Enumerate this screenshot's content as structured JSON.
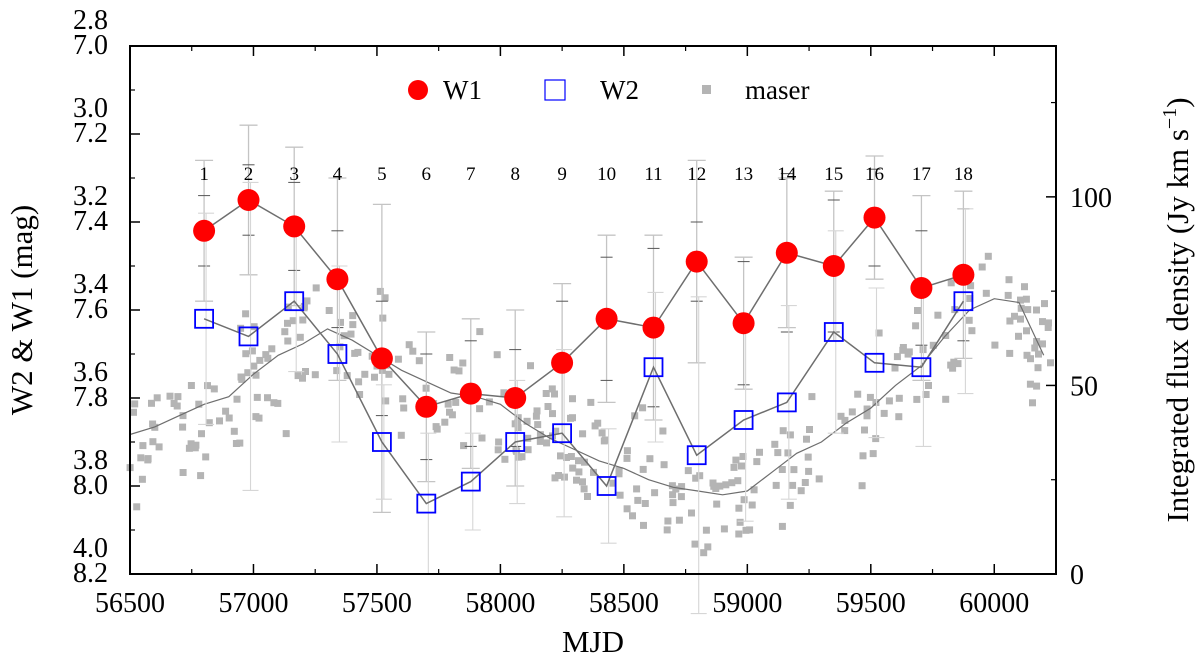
{
  "chart_data": {
    "type": "scatter",
    "xlabel": "MJD",
    "ylabel_left": "W2 & W1 (mag)",
    "ylabel_right": "Integrated flux density (Jy km s",
    "ylabel_right_exp": "−1",
    "ylabel_right_close": ")",
    "xlim": [
      56500,
      60250
    ],
    "x_ticks": [
      "56500",
      "57000",
      "57500",
      "58000",
      "58500",
      "59000",
      "59500",
      "60000"
    ],
    "w1_axis": {
      "range": [
        8.2,
        7.0
      ],
      "ticks": [
        "7.0",
        "7.2",
        "7.4",
        "7.6",
        "7.8",
        "8.0",
        "8.2"
      ]
    },
    "w2_axis": {
      "range": [
        4.0,
        2.8
      ],
      "ticks": [
        "2.8",
        "3.0",
        "3.2",
        "3.4",
        "3.6",
        "3.8",
        "4.0"
      ]
    },
    "right_axis": {
      "range": [
        0,
        140
      ],
      "ticks": [
        "0",
        "50",
        "100"
      ]
    },
    "legend": [
      "W1",
      "W2",
      "maser"
    ],
    "epochs": [
      "1",
      "2",
      "3",
      "4",
      "5",
      "6",
      "7",
      "8",
      "9",
      "10",
      "11",
      "12",
      "13",
      "14",
      "15",
      "16",
      "17",
      "18"
    ],
    "colors": {
      "w1": "#ff0000",
      "w2": "#0000ff",
      "maser": "#b4b4b4",
      "error": "#c4c4c4",
      "line": "#6e6e6e"
    },
    "series": [
      {
        "name": "W1",
        "x": [
          56800,
          56980,
          57165,
          57340,
          57520,
          57700,
          57880,
          58060,
          58250,
          58430,
          58620,
          58795,
          58985,
          59160,
          59350,
          59515,
          59705,
          59875
        ],
        "values": [
          7.42,
          7.35,
          7.41,
          7.53,
          7.71,
          7.82,
          7.79,
          7.8,
          7.72,
          7.62,
          7.64,
          7.49,
          7.63,
          7.47,
          7.5,
          7.39,
          7.55,
          7.52
        ],
        "errors": [
          0.16,
          0.17,
          0.18,
          0.23,
          0.35,
          0.17,
          0.17,
          0.2,
          0.18,
          0.19,
          0.21,
          0.23,
          0.15,
          0.17,
          0.17,
          0.14,
          0.21,
          0.19
        ],
        "error_caps": [
          0.08,
          0.08,
          0.1,
          0.11,
          0.13,
          0.12,
          0.12,
          0.11,
          0.14,
          0.14,
          0.18,
          0.09,
          0.14,
          0.18,
          0.15,
          0.11,
          0.13,
          0.15
        ]
      },
      {
        "name": "W2",
        "x": [
          56800,
          56980,
          57165,
          57340,
          57520,
          57700,
          57880,
          58060,
          58250,
          58430,
          58620,
          58795,
          58985,
          59160,
          59350,
          59515,
          59705,
          59875
        ],
        "values": [
          3.42,
          3.46,
          3.38,
          3.5,
          3.7,
          3.84,
          3.79,
          3.7,
          3.68,
          3.8,
          3.53,
          3.73,
          3.65,
          3.61,
          3.45,
          3.52,
          3.53,
          3.38
        ],
        "errors": [
          0.24,
          0.35,
          0.16,
          0.2,
          0.13,
          0.16,
          0.11,
          0.14,
          0.19,
          0.13,
          0.17,
          0.36,
          0.23,
          0.22,
          0.23,
          0.17,
          0.18,
          0.21
        ]
      },
      {
        "name": "maser",
        "smooth_x": [
          56500,
          56600,
          56700,
          56800,
          56900,
          57000,
          57100,
          57200,
          57300,
          57400,
          57500,
          57600,
          57700,
          57800,
          57900,
          58000,
          58100,
          58200,
          58300,
          58400,
          58500,
          58600,
          58700,
          58800,
          58900,
          59000,
          59100,
          59200,
          59300,
          59400,
          59500,
          59600,
          59700,
          59800,
          59900,
          60000,
          60100,
          60200
        ],
        "smooth_values": [
          37,
          39,
          42,
          45,
          47,
          53,
          58,
          61,
          65,
          62,
          58,
          54,
          51,
          48,
          47,
          45,
          40,
          36,
          33,
          30,
          28,
          25,
          23,
          22,
          21,
          22,
          27,
          32,
          35,
          40,
          44,
          50,
          55,
          63,
          70,
          73,
          72,
          58
        ]
      }
    ]
  }
}
